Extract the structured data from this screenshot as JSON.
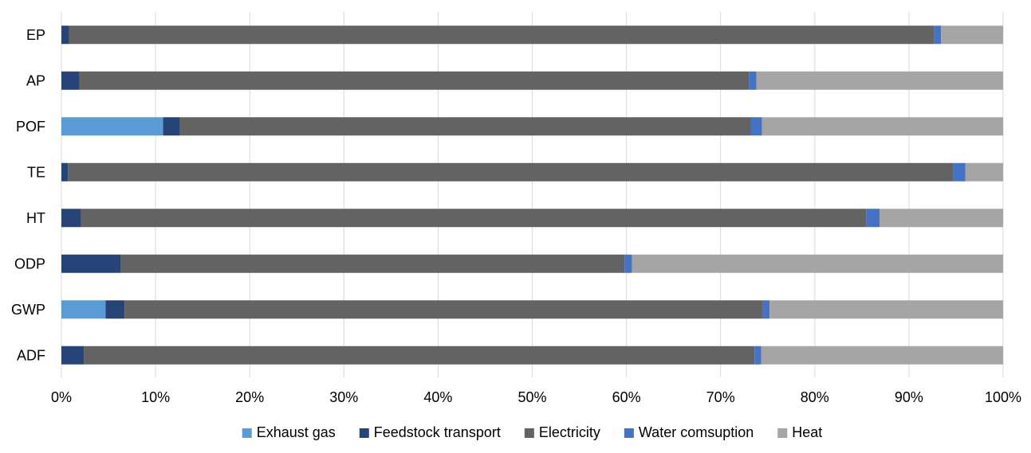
{
  "chart_data": {
    "type": "bar",
    "orientation": "horizontal",
    "stacked": true,
    "percent_stacked": true,
    "categories": [
      "EP",
      "AP",
      "POF",
      "TE",
      "HT",
      "ODP",
      "GWP",
      "ADF"
    ],
    "series": [
      {
        "name": "Exhaust gas",
        "color": "#5B9BD5",
        "values": [
          0.0,
          0.0,
          10.8,
          0.0,
          0.0,
          0.0,
          4.7,
          0.0
        ]
      },
      {
        "name": "Feedstock transport",
        "color": "#264478",
        "values": [
          0.8,
          1.9,
          1.8,
          0.7,
          2.1,
          6.3,
          2.0,
          2.4
        ]
      },
      {
        "name": "Electricity",
        "color": "#636363",
        "values": [
          91.9,
          71.1,
          60.6,
          94.0,
          83.4,
          53.5,
          67.8,
          71.2
        ]
      },
      {
        "name": "Water comsuption",
        "color": "#4472C4",
        "values": [
          0.7,
          0.8,
          1.2,
          1.3,
          1.4,
          0.8,
          0.7,
          0.7
        ]
      },
      {
        "name": "Heat",
        "color": "#A5A5A5",
        "values": [
          6.6,
          26.2,
          25.6,
          4.0,
          13.1,
          39.4,
          24.8,
          25.7
        ]
      }
    ],
    "xticks": [
      "0%",
      "10%",
      "20%",
      "30%",
      "40%",
      "50%",
      "60%",
      "70%",
      "80%",
      "90%",
      "100%"
    ],
    "xlim": [
      0,
      100
    ],
    "grid": "vertical",
    "legend": "bottom",
    "title": "",
    "xlabel": "",
    "ylabel": ""
  }
}
